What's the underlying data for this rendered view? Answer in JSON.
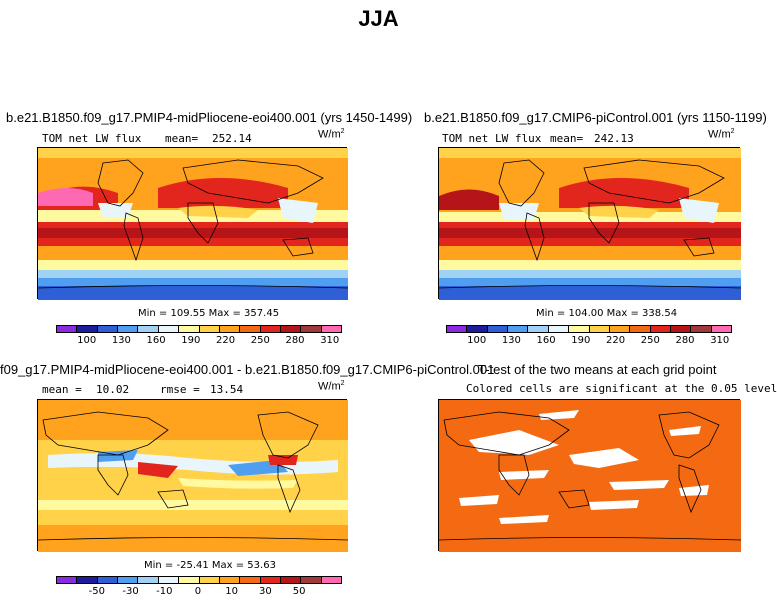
{
  "figure_title": "JJA",
  "units": "W/m",
  "units_exp": "2",
  "panels": {
    "p1": {
      "title": "b.e21.B1850.f09_g17.PMIP4-midPliocene-eoi400.001 (yrs 1450-1499)",
      "variable": "TOM net LW flux",
      "mean_label": "mean=",
      "mean": "252.14",
      "minmax": "Min = 109.55 Max = 357.45"
    },
    "p2": {
      "title": "b.e21.B1850.f09_g17.CMIP6-piControl.001 (yrs 1150-1199)",
      "variable": "TOM net LW flux",
      "mean_label": "mean=",
      "mean": "242.13",
      "minmax": "Min = 104.00 Max = 338.54"
    },
    "p3": {
      "title": "f09_g17.PMIP4-midPliocene-eoi400.001 - b.e21.B1850.f09_g17.CMIP6-piControl.001",
      "mean_label": "mean =",
      "mean": "10.02",
      "rmse_label": "rmse =",
      "rmse": "13.54",
      "minmax": "Min = -25.41 Max = 53.63"
    },
    "p4": {
      "title": "T-test of the two means at each grid point",
      "subtitle": "Colored cells are significant at the 0.05 level"
    }
  },
  "colorbar_abs": {
    "ticks": [
      "100",
      "130",
      "160",
      "190",
      "220",
      "250",
      "280",
      "310"
    ],
    "colors": [
      "#8a2be2",
      "#1c1c9c",
      "#2e5fd6",
      "#4f9ef0",
      "#9fd2f5",
      "#e8f6fb",
      "#fffaa0",
      "#ffd24a",
      "#ffa21e",
      "#f46a12",
      "#e3261d",
      "#b51518",
      "#a03a3a",
      "#ff69b4"
    ]
  },
  "colorbar_diff": {
    "ticks": [
      "-50",
      "-30",
      "-10",
      "0",
      "10",
      "30",
      "50"
    ],
    "colors": [
      "#8a2be2",
      "#1c1c9c",
      "#2e5fd6",
      "#4f9ef0",
      "#9fd2f5",
      "#e8f6fb",
      "#fffaa0",
      "#ffd24a",
      "#ffa21e",
      "#f46a12",
      "#e3261d",
      "#b51518",
      "#a03a3a",
      "#ff69b4"
    ]
  }
}
